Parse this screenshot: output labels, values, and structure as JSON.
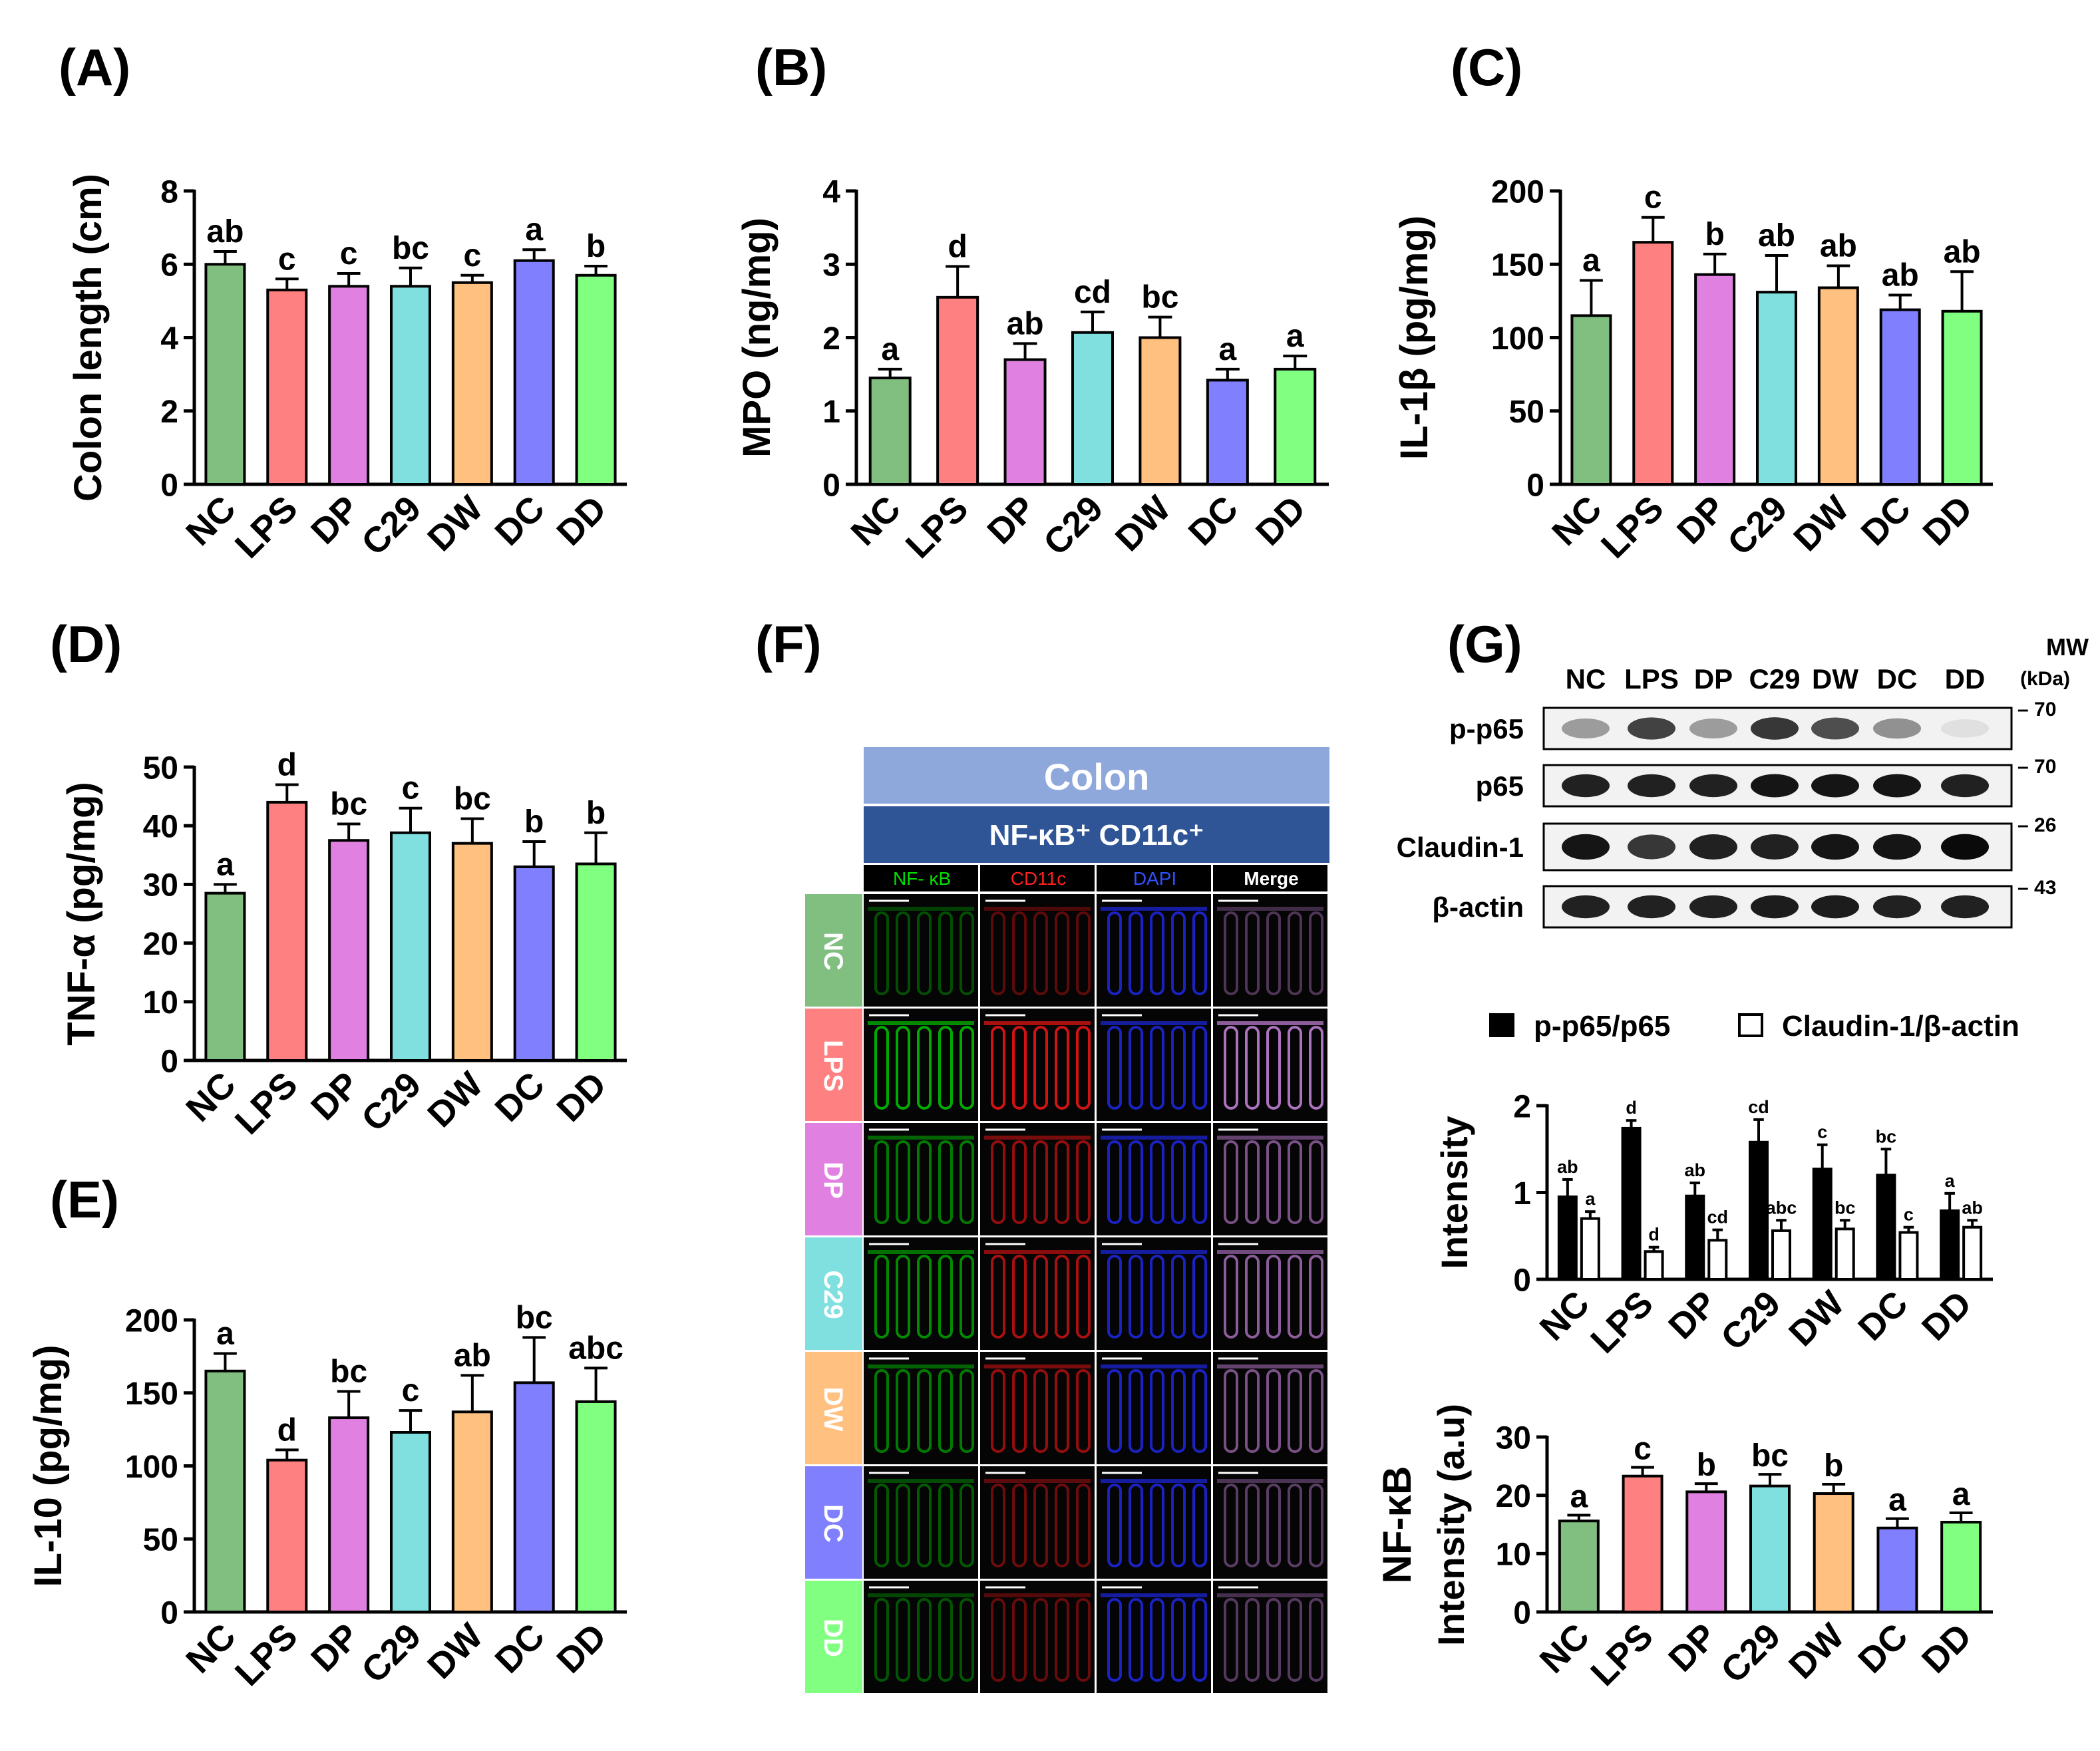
{
  "groups": [
    "NC",
    "LPS",
    "DP",
    "C29",
    "DW",
    "DC",
    "DD"
  ],
  "colors": [
    "#80BF80",
    "#FF8080",
    "#E080E0",
    "#80E0E0",
    "#FFC080",
    "#8080FF",
    "#80FF80"
  ],
  "chart_data": [
    {
      "panel": "(A)",
      "type": "bar",
      "ylabel": "Colon length (cm)",
      "ylim": [
        0,
        8
      ],
      "yticks": [
        0,
        2,
        4,
        6,
        8
      ],
      "categories": [
        "NC",
        "LPS",
        "DP",
        "C29",
        "DW",
        "DC",
        "DD"
      ],
      "values": [
        6.0,
        5.3,
        5.4,
        5.4,
        5.5,
        6.1,
        5.7
      ],
      "errors": [
        0.35,
        0.3,
        0.35,
        0.5,
        0.2,
        0.3,
        0.25
      ],
      "letters": [
        "ab",
        "c",
        "c",
        "bc",
        "c",
        "a",
        "b"
      ]
    },
    {
      "panel": "(B)",
      "type": "bar",
      "ylabel": "MPO (ng/mg)",
      "ylim": [
        0,
        4
      ],
      "yticks": [
        0,
        1,
        2,
        3,
        4
      ],
      "categories": [
        "NC",
        "LPS",
        "DP",
        "C29",
        "DW",
        "DC",
        "DD"
      ],
      "values": [
        1.45,
        2.55,
        1.7,
        2.07,
        2.0,
        1.42,
        1.57
      ],
      "errors": [
        0.12,
        0.42,
        0.22,
        0.28,
        0.28,
        0.15,
        0.18
      ],
      "letters": [
        "a",
        "d",
        "ab",
        "cd",
        "bc",
        "a",
        "a"
      ]
    },
    {
      "panel": "(C)",
      "type": "bar",
      "ylabel": "IL-1β (pg/mg)",
      "ylim": [
        0,
        200
      ],
      "yticks": [
        0,
        50,
        100,
        150,
        200
      ],
      "categories": [
        "NC",
        "LPS",
        "DP",
        "C29",
        "DW",
        "DC",
        "DD"
      ],
      "values": [
        115,
        165,
        143,
        131,
        134,
        119,
        118
      ],
      "errors": [
        24,
        17,
        14,
        25,
        15,
        10,
        27
      ],
      "letters": [
        "a",
        "c",
        "b",
        "ab",
        "ab",
        "ab",
        "ab"
      ]
    },
    {
      "panel": "(D)",
      "type": "bar",
      "ylabel": "TNF-α (pg/mg)",
      "ylim": [
        0,
        50
      ],
      "yticks": [
        0,
        10,
        20,
        30,
        40,
        50
      ],
      "categories": [
        "NC",
        "LPS",
        "DP",
        "C29",
        "DW",
        "DC",
        "DD"
      ],
      "values": [
        28.5,
        44,
        37.5,
        38.8,
        37,
        33,
        33.5
      ],
      "errors": [
        1.5,
        3,
        2.8,
        4.2,
        4.2,
        4.3,
        5.3
      ],
      "letters": [
        "a",
        "d",
        "bc",
        "c",
        "bc",
        "b",
        "b"
      ]
    },
    {
      "panel": "(E)",
      "type": "bar",
      "ylabel": "IL-10 (pg/mg)",
      "ylim": [
        0,
        200
      ],
      "yticks": [
        0,
        50,
        100,
        150,
        200
      ],
      "categories": [
        "NC",
        "LPS",
        "DP",
        "C29",
        "DW",
        "DC",
        "DD"
      ],
      "values": [
        165,
        104,
        133,
        123,
        137,
        157,
        144
      ],
      "errors": [
        12,
        7,
        18,
        15,
        25,
        31,
        23
      ],
      "letters": [
        "a",
        "d",
        "bc",
        "c",
        "ab",
        "bc",
        "abc"
      ]
    },
    {
      "panel": "(G)",
      "type": "bar",
      "ylabel": "Intensity",
      "ylim": [
        0,
        2
      ],
      "yticks": [
        0,
        1,
        2
      ],
      "categories": [
        "NC",
        "LPS",
        "DP",
        "C29",
        "DW",
        "DC",
        "DD"
      ],
      "series": [
        {
          "name": "p-p65/p65",
          "values": [
            0.95,
            1.74,
            0.96,
            1.58,
            1.27,
            1.2,
            0.79
          ],
          "errors": [
            0.2,
            0.09,
            0.15,
            0.26,
            0.28,
            0.3,
            0.2
          ],
          "letters": [
            "ab",
            "d",
            "ab",
            "cd",
            "c",
            "bc",
            "a"
          ]
        },
        {
          "name": "Claudin-1/β-actin",
          "values": [
            0.7,
            0.32,
            0.45,
            0.56,
            0.58,
            0.54,
            0.6
          ],
          "errors": [
            0.08,
            0.05,
            0.12,
            0.12,
            0.1,
            0.06,
            0.08
          ],
          "letters": [
            "a",
            "d",
            "cd",
            "abc",
            "bc",
            "c",
            "ab"
          ]
        }
      ],
      "legend": "top"
    },
    {
      "panel": "",
      "type": "bar",
      "ylabel": "NF-κB Intensity (a.u)",
      "ylim": [
        0,
        30
      ],
      "yticks": [
        0,
        10,
        20,
        30
      ],
      "categories": [
        "NC",
        "LPS",
        "DP",
        "C29",
        "DW",
        "DC",
        "DD"
      ],
      "values": [
        15.6,
        23.3,
        20.6,
        21.6,
        20.3,
        14.4,
        15.4
      ],
      "errors": [
        1.0,
        1.5,
        1.4,
        2.0,
        1.6,
        1.6,
        1.6
      ],
      "letters": [
        "a",
        "c",
        "b",
        "bc",
        "b",
        "a",
        "a"
      ]
    }
  ],
  "panel_f": {
    "label": "(F)",
    "header": "Colon",
    "subheader": "NF-κB⁺ CD11c⁺",
    "channels": [
      "NF- κB",
      "CD11c",
      "DAPI",
      "Merge"
    ],
    "channel_colors": [
      "#00E000",
      "#FF2020",
      "#3050FF",
      "#FFFFFF"
    ],
    "rows": [
      "NC",
      "LPS",
      "DP",
      "C29",
      "DW",
      "DC",
      "DD"
    ],
    "intensity": [
      0.25,
      1.0,
      0.6,
      0.75,
      0.6,
      0.35,
      0.3
    ]
  },
  "blot": {
    "mw_label": "MW",
    "mw_unit": "(kDa)",
    "lanes": [
      "NC",
      "LPS",
      "DP",
      "C29",
      "DW",
      "DC",
      "DD"
    ],
    "rows": [
      {
        "name": "p-p65",
        "mw": "70",
        "intensities": [
          0.35,
          0.75,
          0.35,
          0.8,
          0.7,
          0.4,
          0.05
        ]
      },
      {
        "name": "p65",
        "mw": "70",
        "intensities": [
          0.9,
          0.9,
          0.9,
          0.95,
          0.95,
          0.95,
          0.9
        ]
      },
      {
        "name": "Claudin-1",
        "mw": "26",
        "intensities": [
          0.95,
          0.8,
          0.9,
          0.9,
          0.95,
          0.95,
          1.0
        ]
      },
      {
        "name": "β-actin",
        "mw": "43",
        "intensities": [
          0.9,
          0.9,
          0.9,
          0.92,
          0.92,
          0.9,
          0.9
        ]
      }
    ]
  }
}
